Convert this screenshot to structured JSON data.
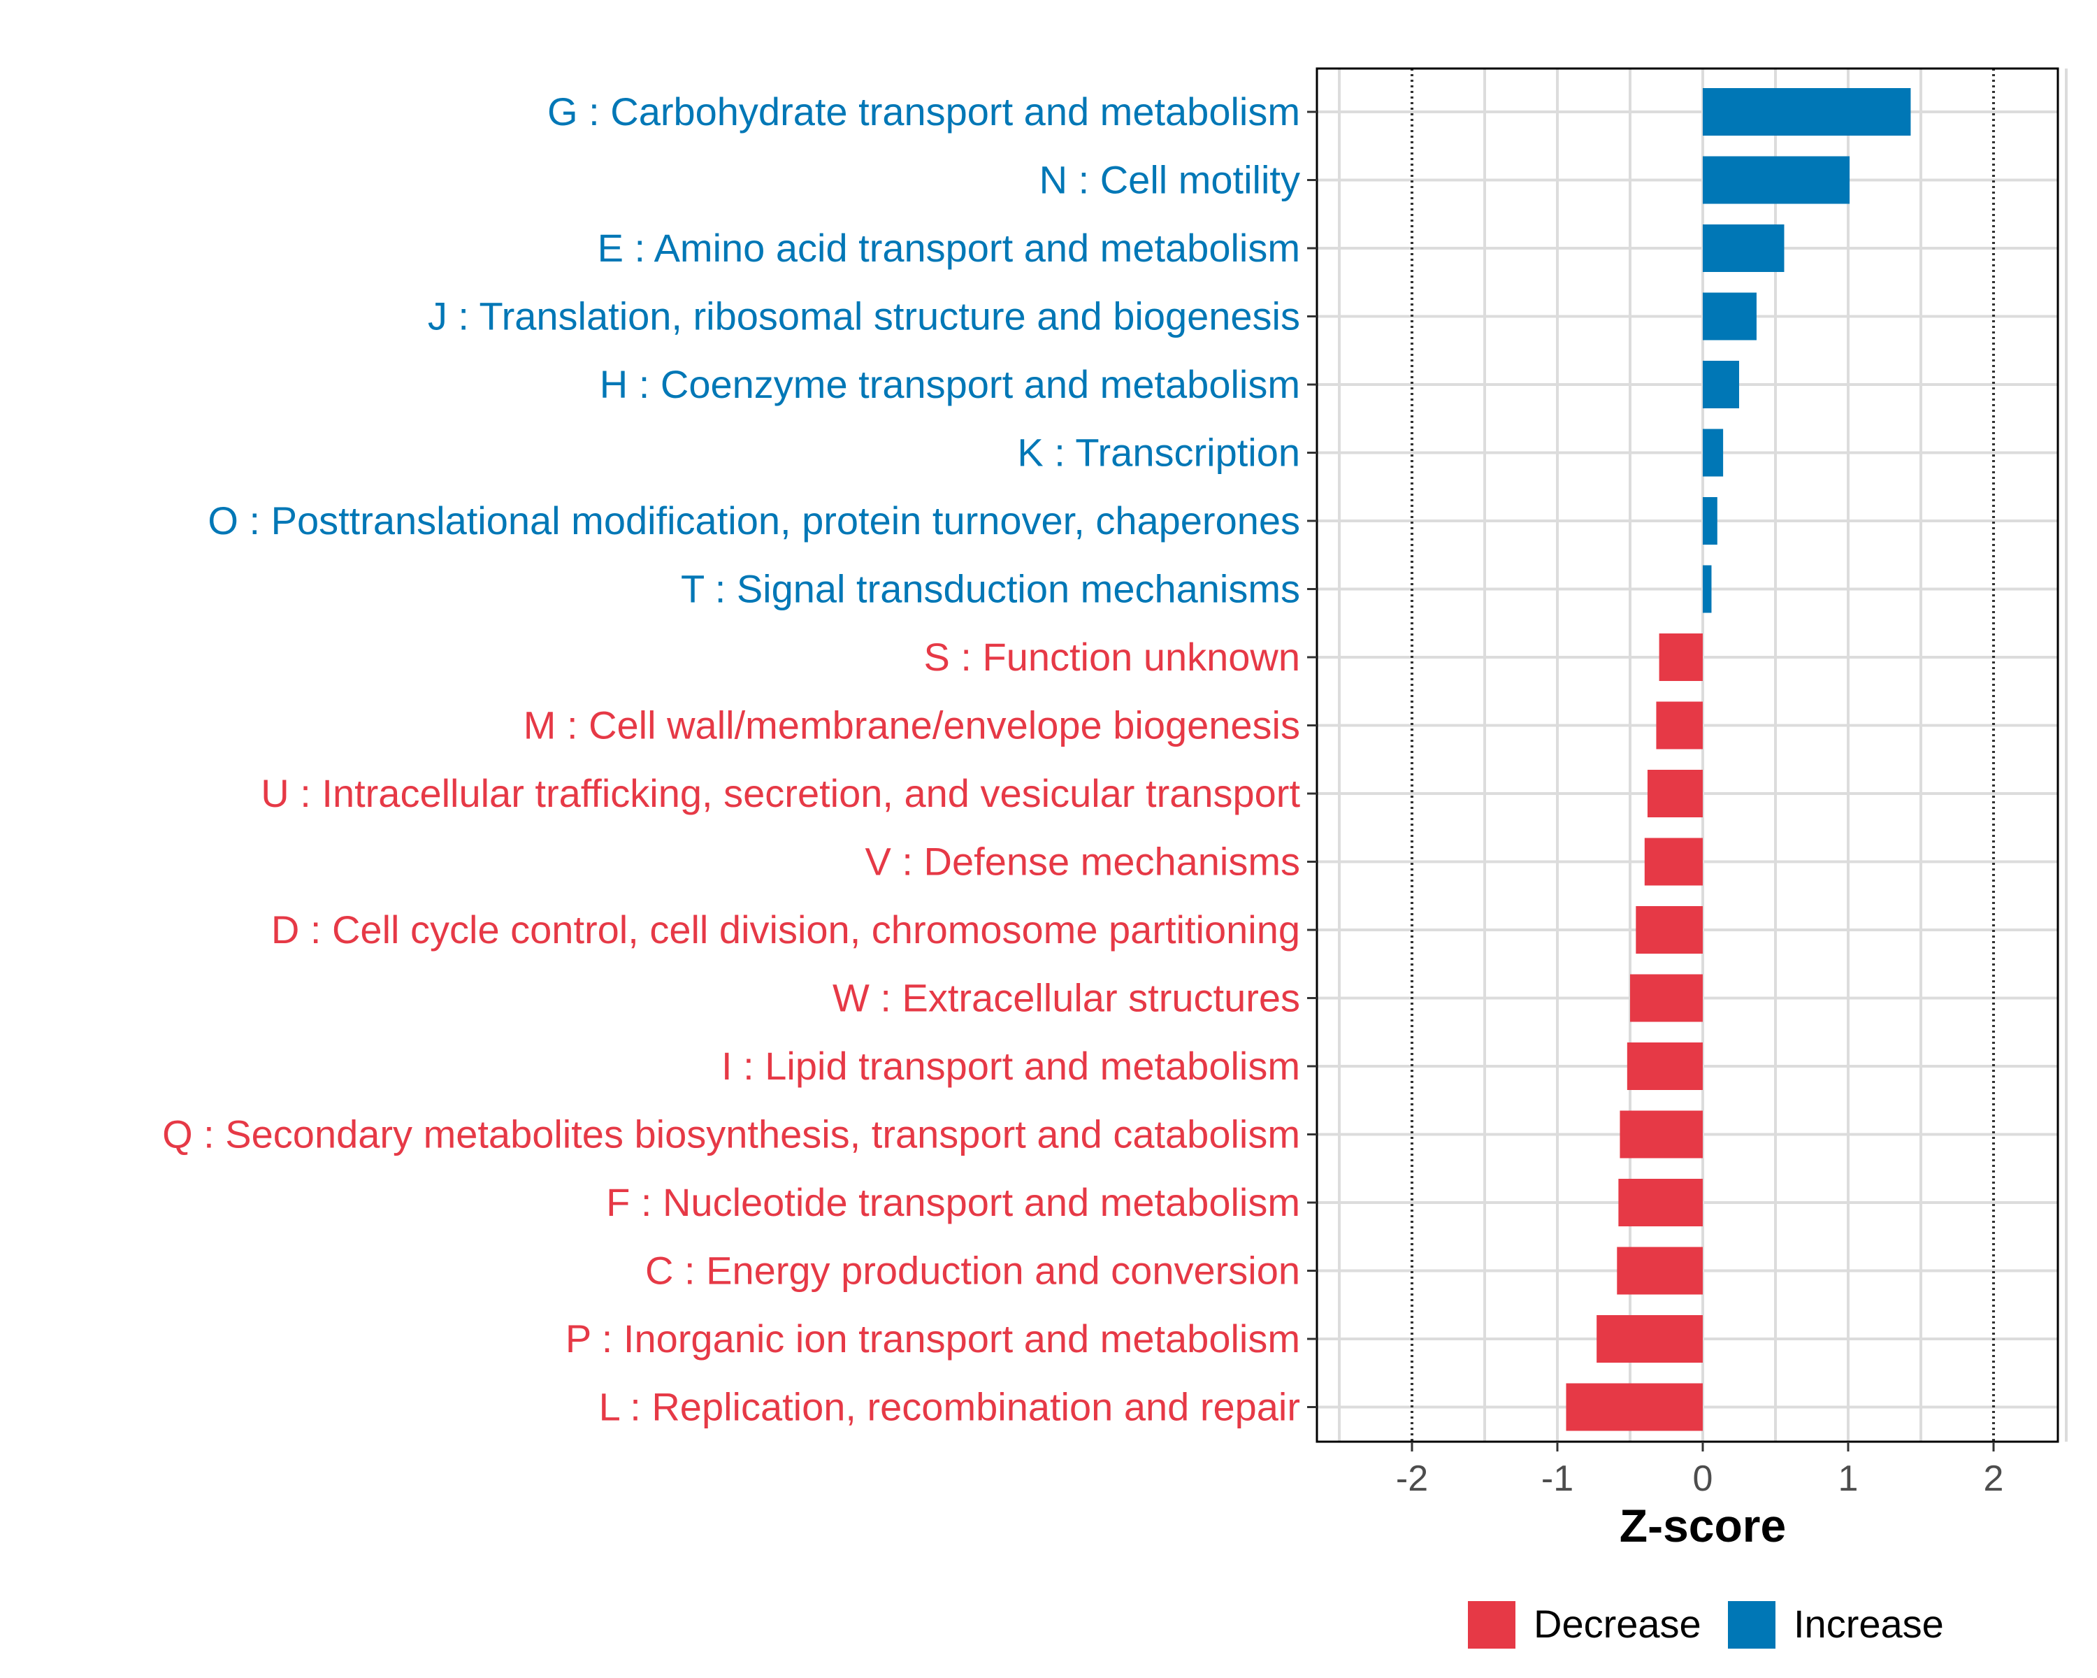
{
  "chart_data": {
    "type": "bar",
    "orientation": "horizontal",
    "xlabel": "Z-score",
    "xlim": [
      -2.65,
      2.65
    ],
    "xticks": [
      -2,
      -1,
      0,
      1,
      2
    ],
    "xtick_labels": [
      "-2",
      "-1",
      "0",
      "1",
      "2"
    ],
    "reference_lines": [
      -2,
      2
    ],
    "grid": true,
    "legend": {
      "position": "bottom",
      "entries": [
        {
          "label": "Decrease",
          "color": "#E63946"
        },
        {
          "label": "Increase",
          "color": "#0077B6"
        }
      ]
    },
    "categories": [
      {
        "label": "G : Carbohydrate transport and metabolism",
        "value": 1.43,
        "group": "Increase"
      },
      {
        "label": "N : Cell motility",
        "value": 1.01,
        "group": "Increase"
      },
      {
        "label": "E : Amino acid transport and metabolism",
        "value": 0.56,
        "group": "Increase"
      },
      {
        "label": "J : Translation, ribosomal structure and biogenesis",
        "value": 0.37,
        "group": "Increase"
      },
      {
        "label": "H : Coenzyme transport and metabolism",
        "value": 0.25,
        "group": "Increase"
      },
      {
        "label": "K : Transcription",
        "value": 0.14,
        "group": "Increase"
      },
      {
        "label": "O : Posttranslational modification, protein turnover, chaperones",
        "value": 0.1,
        "group": "Increase"
      },
      {
        "label": "T : Signal transduction mechanisms",
        "value": 0.06,
        "group": "Increase"
      },
      {
        "label": "S : Function unknown",
        "value": -0.3,
        "group": "Decrease"
      },
      {
        "label": "M : Cell wall/membrane/envelope biogenesis",
        "value": -0.32,
        "group": "Decrease"
      },
      {
        "label": "U : Intracellular trafficking, secretion, and vesicular transport",
        "value": -0.38,
        "group": "Decrease"
      },
      {
        "label": "V : Defense mechanisms",
        "value": -0.4,
        "group": "Decrease"
      },
      {
        "label": "D : Cell cycle control, cell division, chromosome partitioning",
        "value": -0.46,
        "group": "Decrease"
      },
      {
        "label": "W : Extracellular structures",
        "value": -0.5,
        "group": "Decrease"
      },
      {
        "label": "I : Lipid transport and metabolism",
        "value": -0.52,
        "group": "Decrease"
      },
      {
        "label": "Q : Secondary metabolites biosynthesis, transport and catabolism",
        "value": -0.57,
        "group": "Decrease"
      },
      {
        "label": "F : Nucleotide transport and metabolism",
        "value": -0.58,
        "group": "Decrease"
      },
      {
        "label": "C : Energy production and conversion",
        "value": -0.59,
        "group": "Decrease"
      },
      {
        "label": "P : Inorganic ion transport and metabolism",
        "value": -0.73,
        "group": "Decrease"
      },
      {
        "label": "L : Replication, recombination and repair",
        "value": -0.94,
        "group": "Decrease"
      }
    ]
  }
}
